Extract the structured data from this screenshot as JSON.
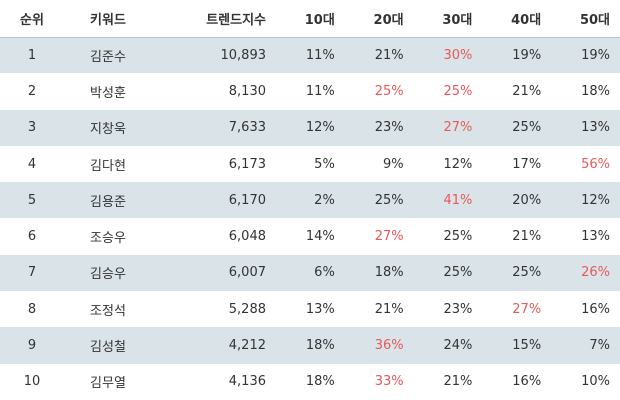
{
  "table": {
    "headers": [
      "순위",
      "키워드",
      "트렌드지수",
      "10대",
      "20대",
      "30대",
      "40대",
      "50대"
    ],
    "highlight_color": "#e8595a",
    "rows": [
      {
        "rank": "1",
        "keyword": "김준수",
        "trend": "10,893",
        "ages": [
          "11%",
          "21%",
          "30%",
          "19%",
          "19%"
        ],
        "hi": [
          false,
          false,
          true,
          false,
          false
        ]
      },
      {
        "rank": "2",
        "keyword": "박성훈",
        "trend": "8,130",
        "ages": [
          "11%",
          "25%",
          "25%",
          "21%",
          "18%"
        ],
        "hi": [
          false,
          true,
          true,
          false,
          false
        ]
      },
      {
        "rank": "3",
        "keyword": "지창욱",
        "trend": "7,633",
        "ages": [
          "12%",
          "23%",
          "27%",
          "25%",
          "13%"
        ],
        "hi": [
          false,
          false,
          true,
          false,
          false
        ]
      },
      {
        "rank": "4",
        "keyword": "김다현",
        "trend": "6,173",
        "ages": [
          "5%",
          "9%",
          "12%",
          "17%",
          "56%"
        ],
        "hi": [
          false,
          false,
          false,
          false,
          true
        ]
      },
      {
        "rank": "5",
        "keyword": "김용준",
        "trend": "6,170",
        "ages": [
          "2%",
          "25%",
          "41%",
          "20%",
          "12%"
        ],
        "hi": [
          false,
          false,
          true,
          false,
          false
        ]
      },
      {
        "rank": "6",
        "keyword": "조승우",
        "trend": "6,048",
        "ages": [
          "14%",
          "27%",
          "25%",
          "21%",
          "13%"
        ],
        "hi": [
          false,
          true,
          false,
          false,
          false
        ]
      },
      {
        "rank": "7",
        "keyword": "김승우",
        "trend": "6,007",
        "ages": [
          "6%",
          "18%",
          "25%",
          "25%",
          "26%"
        ],
        "hi": [
          false,
          false,
          false,
          false,
          true
        ]
      },
      {
        "rank": "8",
        "keyword": "조정석",
        "trend": "5,288",
        "ages": [
          "13%",
          "21%",
          "23%",
          "27%",
          "16%"
        ],
        "hi": [
          false,
          false,
          false,
          true,
          false
        ]
      },
      {
        "rank": "9",
        "keyword": "김성철",
        "trend": "4,212",
        "ages": [
          "18%",
          "36%",
          "24%",
          "15%",
          "7%"
        ],
        "hi": [
          false,
          true,
          false,
          false,
          false
        ]
      },
      {
        "rank": "10",
        "keyword": "김무열",
        "trend": "4,136",
        "ages": [
          "18%",
          "33%",
          "21%",
          "16%",
          "10%"
        ],
        "hi": [
          false,
          true,
          false,
          false,
          false
        ]
      }
    ]
  }
}
